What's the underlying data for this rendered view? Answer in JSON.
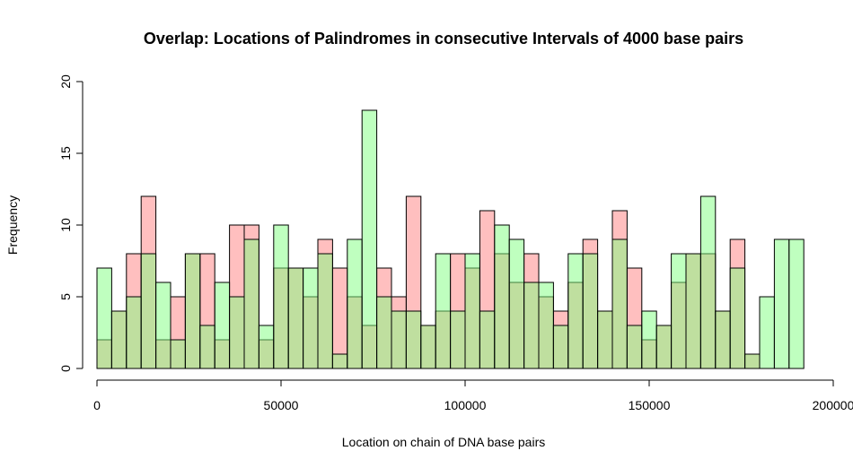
{
  "chart_data": {
    "type": "histogram-overlap",
    "title": "Overlap: Locations of Palindromes in consecutive Intervals of 4000 base pairs",
    "xlabel": "Location on chain of DNA base pairs",
    "ylabel": "Frequency",
    "bin_width": 4000,
    "bin_start": 0,
    "xlim": [
      0,
      236000
    ],
    "ylim": [
      0,
      20
    ],
    "x_ticks": [
      0,
      50000,
      100000,
      150000,
      200000
    ],
    "y_ticks": [
      0,
      5,
      10,
      15,
      20
    ],
    "grid": false,
    "legend": "none",
    "series": [
      {
        "color": "#FF8080",
        "values": [
          2,
          4,
          8,
          12,
          2,
          5,
          8,
          8,
          2,
          10,
          10,
          2,
          7,
          7,
          5,
          9,
          7,
          5,
          3,
          7,
          5,
          12,
          3,
          4,
          8,
          7,
          11,
          8,
          6,
          8,
          5,
          4,
          6,
          9,
          4,
          11,
          7,
          2,
          3,
          6,
          8,
          8,
          4,
          9,
          1
        ]
      },
      {
        "color": "#80FF80",
        "values": [
          7,
          4,
          5,
          8,
          6,
          2,
          8,
          3,
          6,
          5,
          9,
          3,
          10,
          7,
          7,
          8,
          1,
          9,
          18,
          5,
          4,
          4,
          3,
          8,
          4,
          8,
          4,
          10,
          9,
          6,
          6,
          3,
          8,
          8,
          4,
          9,
          3,
          4,
          3,
          8,
          8,
          12,
          4,
          7,
          1,
          5,
          9,
          9,
          0
        ]
      }
    ],
    "overlap_color": "#80C040"
  }
}
